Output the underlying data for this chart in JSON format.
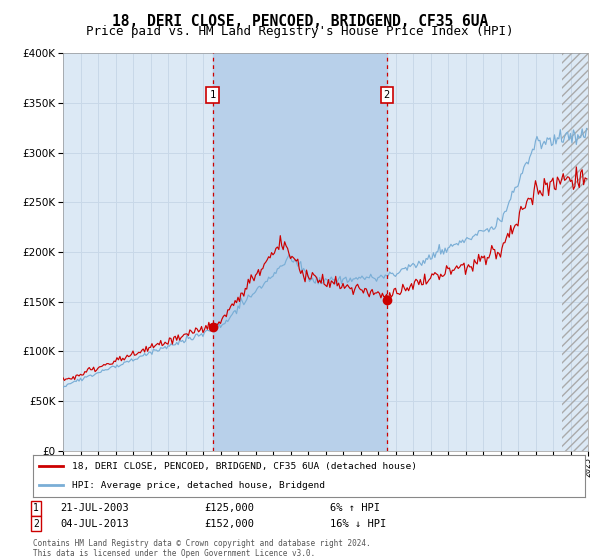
{
  "title": "18, DERI CLOSE, PENCOED, BRIDGEND, CF35 6UA",
  "subtitle": "Price paid vs. HM Land Registry's House Price Index (HPI)",
  "title_fontsize": 10.5,
  "subtitle_fontsize": 9,
  "x_start_year": 1995,
  "x_end_year": 2025,
  "ylim": [
    0,
    400000
  ],
  "yticks": [
    0,
    50000,
    100000,
    150000,
    200000,
    250000,
    300000,
    350000,
    400000
  ],
  "background_color": "#ffffff",
  "plot_bg_color": "#dce9f5",
  "grid_color": "#c8d8e8",
  "sale1_date_num": 2003.55,
  "sale1_price": 125000,
  "sale1_label": "1",
  "sale2_date_num": 2013.5,
  "sale2_price": 152000,
  "sale2_label": "2",
  "red_line_color": "#cc0000",
  "blue_line_color": "#7aaed6",
  "vline_color": "#cc0000",
  "shading_color": "#b8d0ea",
  "legend_line1": "18, DERI CLOSE, PENCOED, BRIDGEND, CF35 6UA (detached house)",
  "legend_line2": "HPI: Average price, detached house, Bridgend",
  "annotation1_label": "1",
  "annotation1_date": "21-JUL-2003",
  "annotation1_price": "£125,000",
  "annotation1_hpi": "6% ↑ HPI",
  "annotation2_label": "2",
  "annotation2_date": "04-JUL-2013",
  "annotation2_price": "£152,000",
  "annotation2_hpi": "16% ↓ HPI",
  "footer": "Contains HM Land Registry data © Crown copyright and database right 2024.\nThis data is licensed under the Open Government Licence v3.0."
}
